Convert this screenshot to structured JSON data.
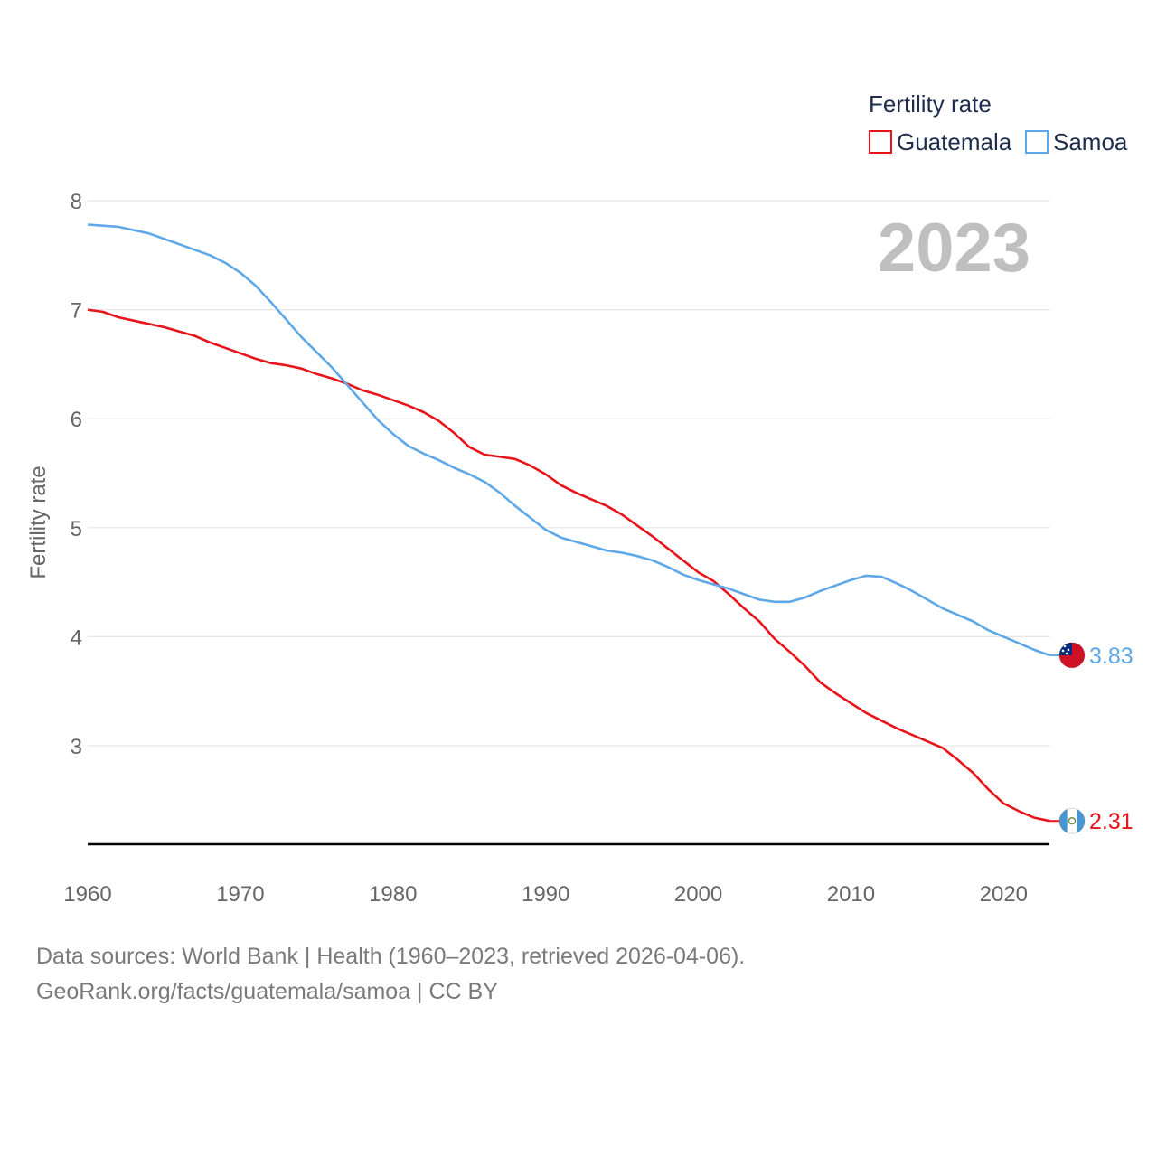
{
  "chart_data": {
    "type": "line",
    "title": "",
    "legend_title": "Fertility rate",
    "ylabel": "Fertility rate",
    "xlabel": "",
    "year_label": "2023",
    "xlim": [
      1960,
      2023
    ],
    "ylim": [
      2.1,
      8.0
    ],
    "yticks": [
      3,
      4,
      5,
      6,
      7,
      8
    ],
    "xticks": [
      1960,
      1970,
      1980,
      1990,
      2000,
      2010,
      2020
    ],
    "grid": true,
    "legend_position": "top-right",
    "x": [
      1960,
      1961,
      1962,
      1963,
      1964,
      1965,
      1966,
      1967,
      1968,
      1969,
      1970,
      1971,
      1972,
      1973,
      1974,
      1975,
      1976,
      1977,
      1978,
      1979,
      1980,
      1981,
      1982,
      1983,
      1984,
      1985,
      1986,
      1987,
      1988,
      1989,
      1990,
      1991,
      1992,
      1993,
      1994,
      1995,
      1996,
      1997,
      1998,
      1999,
      2000,
      2001,
      2002,
      2003,
      2004,
      2005,
      2006,
      2007,
      2008,
      2009,
      2010,
      2011,
      2012,
      2013,
      2014,
      2015,
      2016,
      2017,
      2018,
      2019,
      2020,
      2021,
      2022,
      2023
    ],
    "series": [
      {
        "name": "Guatemala",
        "color": "#e8141b",
        "end_label": "2.31",
        "flag": "guatemala-flag",
        "values": [
          7.0,
          6.98,
          6.93,
          6.9,
          6.87,
          6.84,
          6.8,
          6.76,
          6.7,
          6.65,
          6.6,
          6.55,
          6.51,
          6.49,
          6.46,
          6.41,
          6.37,
          6.32,
          6.26,
          6.22,
          6.17,
          6.12,
          6.06,
          5.98,
          5.87,
          5.74,
          5.67,
          5.65,
          5.63,
          5.57,
          5.49,
          5.39,
          5.32,
          5.26,
          5.2,
          5.12,
          5.02,
          4.92,
          4.81,
          4.7,
          4.59,
          4.51,
          4.39,
          4.26,
          4.14,
          3.98,
          3.86,
          3.73,
          3.58,
          3.48,
          3.39,
          3.3,
          3.23,
          3.16,
          3.1,
          3.04,
          2.98,
          2.87,
          2.75,
          2.6,
          2.47,
          2.4,
          2.34,
          2.31
        ]
      },
      {
        "name": "Samoa",
        "color": "#5fa8e8",
        "end_label": "3.83",
        "flag": "samoa-flag",
        "values": [
          7.78,
          7.77,
          7.76,
          7.73,
          7.7,
          7.65,
          7.6,
          7.55,
          7.5,
          7.43,
          7.34,
          7.22,
          7.07,
          6.91,
          6.75,
          6.61,
          6.47,
          6.31,
          6.15,
          5.99,
          5.86,
          5.75,
          5.68,
          5.62,
          5.55,
          5.49,
          5.42,
          5.32,
          5.2,
          5.09,
          4.98,
          4.91,
          4.87,
          4.83,
          4.79,
          4.77,
          4.74,
          4.7,
          4.64,
          4.57,
          4.52,
          4.48,
          4.44,
          4.39,
          4.34,
          4.32,
          4.32,
          4.36,
          4.42,
          4.47,
          4.52,
          4.56,
          4.55,
          4.49,
          4.42,
          4.34,
          4.26,
          4.2,
          4.14,
          4.06,
          4.0,
          3.94,
          3.88,
          3.83
        ]
      }
    ]
  },
  "footer": {
    "source_line": "Data sources: World Bank | Health (1960–2023, retrieved 2026-04-06).",
    "credit_line": "GeoRank.org/facts/guatemala/samoa | CC BY"
  }
}
